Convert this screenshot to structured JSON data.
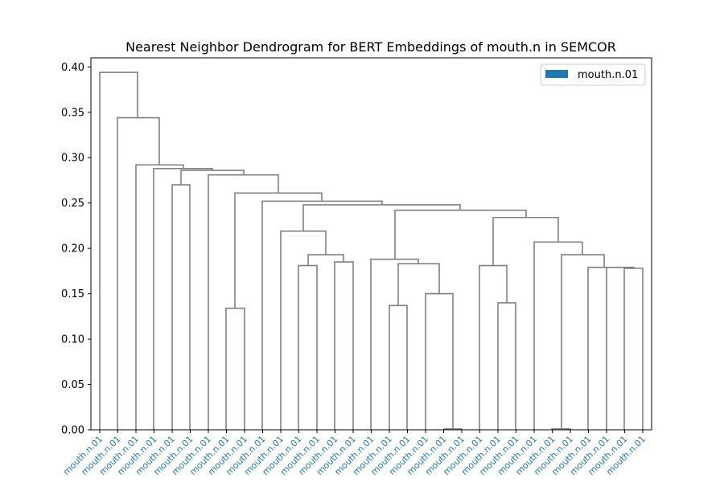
{
  "chart_data": {
    "type": "dendrogram",
    "title": "Nearest Neighbor Dendrogram for BERT Embeddings of mouth.n in SEMCOR",
    "xlabel": "",
    "ylabel": "",
    "ylim": [
      0,
      0.41
    ],
    "yticks": [
      "0.00",
      "0.05",
      "0.10",
      "0.15",
      "0.20",
      "0.25",
      "0.30",
      "0.35",
      "0.40"
    ],
    "ytick_values": [
      0,
      0.05,
      0.1,
      0.15,
      0.2,
      0.25,
      0.3,
      0.35,
      0.4
    ],
    "leaf_labels": [
      "mouth.n.01",
      "mouth.n.01",
      "mouth.n.01",
      "mouth.n.01",
      "mouth.n.01",
      "mouth.n.01",
      "mouth.n.01",
      "mouth.n.01",
      "mouth.n.01",
      "mouth.n.01",
      "mouth.n.01",
      "mouth.n.01",
      "mouth.n.01",
      "mouth.n.01",
      "mouth.n.01",
      "mouth.n.01",
      "mouth.n.01",
      "mouth.n.01",
      "mouth.n.01",
      "mouth.n.01",
      "mouth.n.01",
      "mouth.n.01",
      "mouth.n.01",
      "mouth.n.01",
      "mouth.n.01",
      "mouth.n.01",
      "mouth.n.01",
      "mouth.n.01",
      "mouth.n.01",
      "mouth.n.01",
      "mouth.n.01"
    ],
    "merges": [
      {
        "a": "L25",
        "b": "L26",
        "h": 0.001
      },
      {
        "a": "L19",
        "b": "L20",
        "h": 0.001
      },
      {
        "a": "L6",
        "b": "L7",
        "h": 0.134
      },
      {
        "a": "L17",
        "b": "L18",
        "h": 0.138
      },
      {
        "a": "L22",
        "b": "L23",
        "h": 0.14
      },
      {
        "a": "L19",
        "b": "c1",
        "h": 0.15
      },
      {
        "a": "L29",
        "b": "L30",
        "h": 0.178
      },
      {
        "a": "L28",
        "b": "c6",
        "h": 0.179
      },
      {
        "a": "L27",
        "b": "c7",
        "h": 0.179
      },
      {
        "a": "L15",
        "b": "L16",
        "h": 0.181
      },
      {
        "a": "L21",
        "b": "c4",
        "h": 0.181
      },
      {
        "a": "c5",
        "b": "c2",
        "h": 0.183
      },
      {
        "a": "L14",
        "b": "c11",
        "h": 0.188
      },
      {
        "a": "L16b",
        "b": "L17b",
        "h": 0.185
      },
      {
        "a": "c9",
        "b": "c13",
        "h": 0.193
      },
      {
        "a": "c14",
        "b": "c8",
        "h": 0.193
      },
      {
        "a": "L22b",
        "b": "c15",
        "h": 0.207
      },
      {
        "a": "L13",
        "b": "c15b",
        "h": 0.219
      },
      {
        "a": "c10",
        "b": "c16",
        "h": 0.234
      },
      {
        "a": "c12",
        "b": "c18",
        "h": 0.242
      },
      {
        "a": "c17",
        "b": "c19",
        "h": 0.248
      },
      {
        "a": "L12",
        "b": "c20",
        "h": 0.252
      },
      {
        "a": "c3",
        "b": "c21",
        "h": 0.261
      },
      {
        "a": "L4",
        "b": "L5",
        "h": 0.27
      },
      {
        "a": "L11",
        "b": "c22",
        "h": 0.281
      },
      {
        "a": "L10",
        "b": "c24",
        "h": 0.286
      },
      {
        "a": "c23",
        "b": "c25",
        "h": 0.288
      },
      {
        "a": "L2",
        "b": "c26",
        "h": 0.292
      },
      {
        "a": "L1",
        "b": "c27",
        "h": 0.344
      },
      {
        "a": "L0",
        "b": "c28",
        "h": 0.394
      }
    ],
    "links": [
      [
        0,
        0,
        0.394,
        0.394,
        1.0,
        1.0,
        0.344,
        0.344
      ],
      [
        1.0,
        1.0,
        0.344,
        0.344,
        2.0,
        2.0,
        0.292,
        0.292
      ],
      [
        2.0,
        2.0,
        0.292,
        0.292,
        3.0,
        3.0,
        0.288,
        0.288
      ],
      [
        3.0,
        3.0,
        0.288,
        0.288,
        4.0,
        4.0,
        0.27,
        0.27
      ],
      [
        4.0,
        4.0,
        0.27,
        0.27,
        5.0,
        5.0,
        0.0,
        0.0
      ],
      [
        3.0,
        3.0,
        0.288,
        0.288,
        4.5,
        4.5,
        0.288,
        0.288
      ]
    ],
    "legend": {
      "placement": "top-right",
      "entries": [
        {
          "label": "mouth.n.01",
          "color": "#1f77b4"
        }
      ]
    },
    "colors": {
      "link": "#808080",
      "leaf_label": "#1f77b4",
      "axis": "#000000"
    },
    "grid": false
  }
}
